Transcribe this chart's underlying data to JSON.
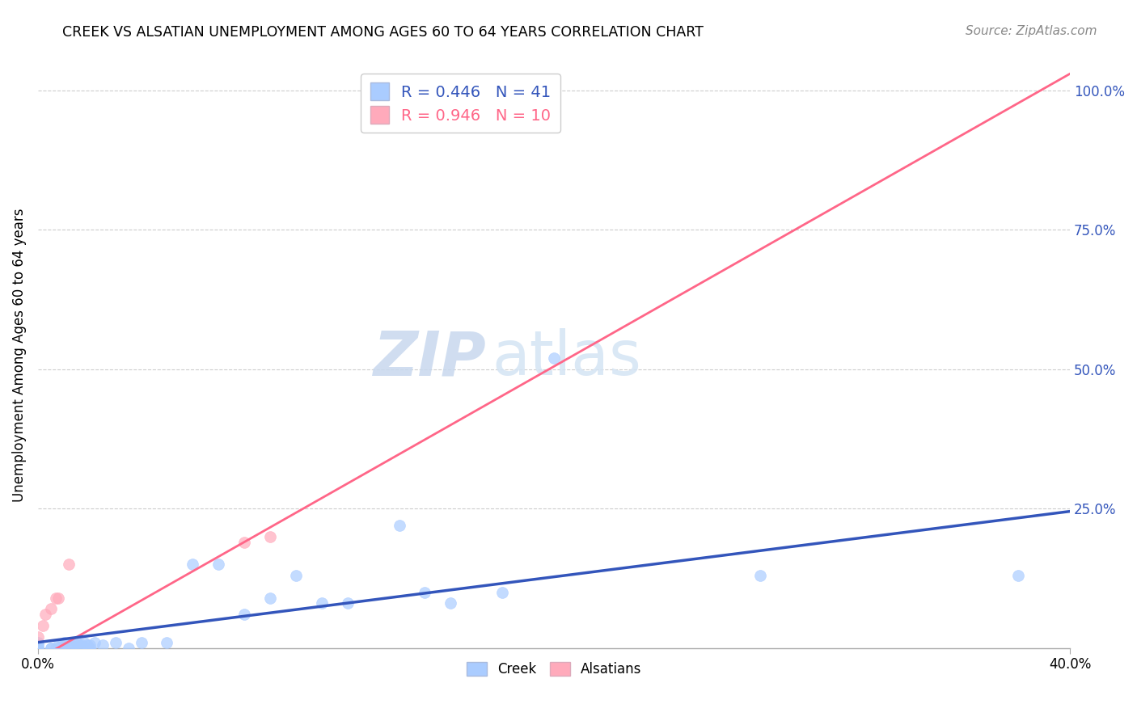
{
  "title": "CREEK VS ALSATIAN UNEMPLOYMENT AMONG AGES 60 TO 64 YEARS CORRELATION CHART",
  "source": "Source: ZipAtlas.com",
  "ylabel": "Unemployment Among Ages 60 to 64 years",
  "xlim": [
    0.0,
    0.4
  ],
  "ylim": [
    0.0,
    1.05
  ],
  "ytick_positions": [
    0.0,
    0.25,
    0.5,
    0.75,
    1.0
  ],
  "ytick_labels": [
    "",
    "25.0%",
    "50.0%",
    "75.0%",
    "100.0%"
  ],
  "creek_R": 0.446,
  "creek_N": 41,
  "alsatian_R": 0.946,
  "alsatian_N": 10,
  "creek_color": "#aaccff",
  "alsatian_color": "#ffaabb",
  "creek_line_color": "#3355bb",
  "alsatian_line_color": "#ff6688",
  "watermark_zip": "ZIP",
  "watermark_atlas": "atlas",
  "creek_x": [
    0.0,
    0.0,
    0.0,
    0.0,
    0.005,
    0.005,
    0.007,
    0.008,
    0.009,
    0.01,
    0.01,
    0.012,
    0.013,
    0.014,
    0.015,
    0.016,
    0.017,
    0.018,
    0.019,
    0.02,
    0.02,
    0.022,
    0.025,
    0.03,
    0.035,
    0.04,
    0.05,
    0.06,
    0.07,
    0.08,
    0.09,
    0.1,
    0.11,
    0.12,
    0.14,
    0.15,
    0.16,
    0.18,
    0.2,
    0.28,
    0.38
  ],
  "creek_y": [
    0.0,
    0.0,
    0.005,
    0.01,
    0.0,
    0.0,
    0.0,
    0.005,
    0.005,
    0.0,
    0.01,
    0.005,
    0.005,
    0.008,
    0.01,
    0.005,
    0.005,
    0.01,
    0.005,
    0.0,
    0.005,
    0.01,
    0.005,
    0.01,
    0.0,
    0.01,
    0.01,
    0.15,
    0.15,
    0.06,
    0.09,
    0.13,
    0.08,
    0.08,
    0.22,
    0.1,
    0.08,
    0.1,
    0.52,
    0.13,
    0.13
  ],
  "alsatian_x": [
    0.0,
    0.002,
    0.003,
    0.005,
    0.007,
    0.008,
    0.012,
    0.08,
    0.09,
    0.2
  ],
  "alsatian_y": [
    0.02,
    0.04,
    0.06,
    0.07,
    0.09,
    0.09,
    0.15,
    0.19,
    0.2,
    0.96
  ],
  "als_line_x0": 0.0,
  "als_line_y0": -0.02,
  "als_line_x1": 0.4,
  "als_line_y1": 1.03,
  "creek_line_x0": 0.0,
  "creek_line_y0": 0.01,
  "creek_line_x1": 0.4,
  "creek_line_y1": 0.245
}
